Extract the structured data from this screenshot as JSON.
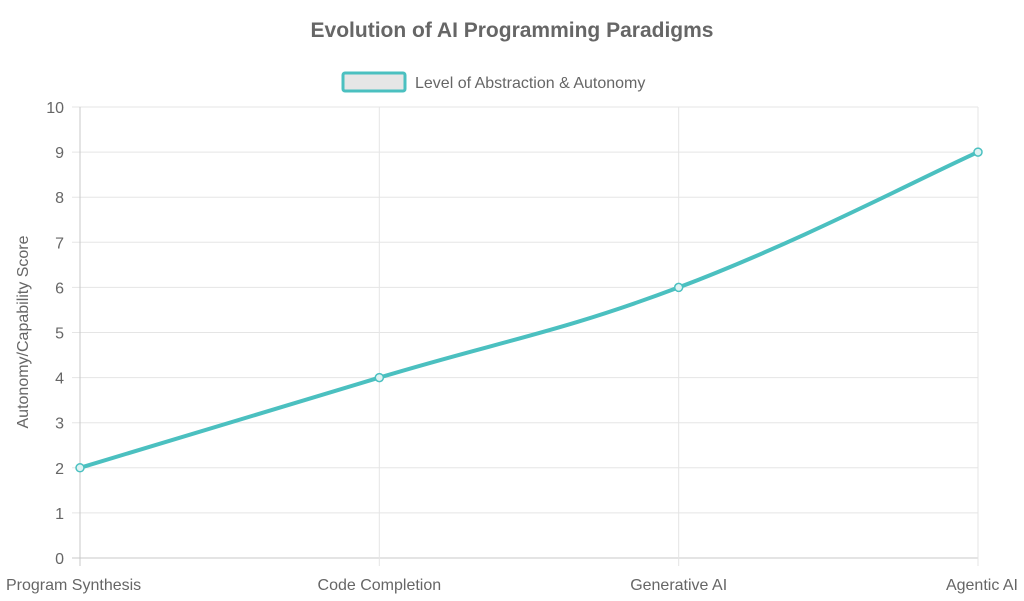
{
  "chart_data": {
    "type": "line",
    "title": "Evolution of AI Programming Paradigms",
    "xlabel": "",
    "ylabel": "Autonomy/Capability Score",
    "categories": [
      "Program Synthesis",
      "Code Completion",
      "Generative AI",
      "Agentic AI"
    ],
    "series": [
      {
        "name": "Level of Abstraction & Autonomy",
        "values": [
          2,
          4,
          6,
          9
        ],
        "color": "#4bc0c0"
      }
    ],
    "ylim": [
      0,
      10
    ],
    "yticks": [
      "0",
      "1",
      "2",
      "3",
      "4",
      "5",
      "6",
      "7",
      "8",
      "9",
      "10"
    ],
    "grid": true,
    "legend_position": "top-center",
    "line_style": "smooth"
  }
}
